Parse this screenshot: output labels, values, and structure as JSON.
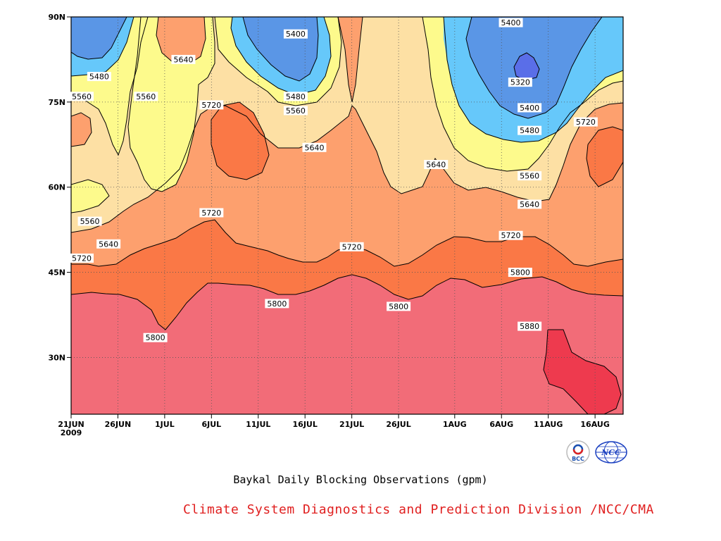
{
  "chart_data": {
    "type": "heatmap",
    "variant": "filled-contour",
    "title": "Baykal Daily Blocking Observations (gpm)",
    "x_ticks": [
      "21JUN",
      "26JUN",
      "1JUL",
      "6JUL",
      "11JUL",
      "16JUL",
      "21JUL",
      "26JUL",
      "1AUG",
      "6AUG",
      "11AUG",
      "16AUG"
    ],
    "x_year_label": "2009",
    "y_ticks": [
      "30N",
      "45N",
      "60N",
      "75N",
      "90N"
    ],
    "x_range": [
      "2009-06-21",
      "2009-08-19"
    ],
    "y_range_deg": [
      20,
      90
    ],
    "grid": "dotted",
    "contour_levels": [
      5320,
      5400,
      5480,
      5560,
      5640,
      5720,
      5800,
      5880
    ],
    "colors": {
      "below_5400": "#5a6ee8",
      "5400_5480": "#5a96e6",
      "5480_5560": "#66c8fa",
      "5560_5640": "#fdfa8c",
      "5640_5720": "#fde0a4",
      "5720_5800": "#fda06e",
      "5800_5880": "#fa7846",
      "5880_5960": "#f26c78",
      "above_5960": "#ee3a4e"
    },
    "contour_labels": [
      {
        "value": "5320",
        "date": "2009-08-08",
        "lat": 78.5
      },
      {
        "value": "5400",
        "date": "2009-07-15",
        "lat": 87
      },
      {
        "value": "5400",
        "date": "2009-08-07",
        "lat": 89
      },
      {
        "value": "5400",
        "date": "2009-08-09",
        "lat": 74
      },
      {
        "value": "5480",
        "date": "2009-06-24",
        "lat": 79.5
      },
      {
        "value": "5480",
        "date": "2009-07-15",
        "lat": 76
      },
      {
        "value": "5480",
        "date": "2009-08-09",
        "lat": 70
      },
      {
        "value": "5560",
        "date": "2009-06-21",
        "lat": 76
      },
      {
        "value": "5560",
        "date": "2009-06-29",
        "lat": 76
      },
      {
        "value": "5560",
        "date": "2009-07-15",
        "lat": 73.5
      },
      {
        "value": "5560",
        "date": "2009-08-09",
        "lat": 62
      },
      {
        "value": "5560",
        "date": "2009-06-23",
        "lat": 54
      },
      {
        "value": "5640",
        "date": "2009-07-03",
        "lat": 82.5
      },
      {
        "value": "5640",
        "date": "2009-07-17",
        "lat": 67
      },
      {
        "value": "5640",
        "date": "2009-07-30",
        "lat": 64
      },
      {
        "value": "5640",
        "date": "2009-08-09",
        "lat": 57
      },
      {
        "value": "5640",
        "date": "2009-06-25",
        "lat": 50
      },
      {
        "value": "5720",
        "date": "2009-07-06",
        "lat": 74.5
      },
      {
        "value": "5720",
        "date": "2009-08-15",
        "lat": 71.5
      },
      {
        "value": "5720",
        "date": "2009-07-06",
        "lat": 55.5
      },
      {
        "value": "5720",
        "date": "2009-07-21",
        "lat": 49.5
      },
      {
        "value": "5720",
        "date": "2009-06-21",
        "lat": 47.5
      },
      {
        "value": "5720",
        "date": "2009-08-07",
        "lat": 51.5
      },
      {
        "value": "5800",
        "date": "2009-08-08",
        "lat": 45
      },
      {
        "value": "5800",
        "date": "2009-07-13",
        "lat": 39.5
      },
      {
        "value": "5800",
        "date": "2009-07-26",
        "lat": 39
      },
      {
        "value": "5800",
        "date": "2009-06-30",
        "lat": 33.5
      },
      {
        "value": "5880",
        "date": "2009-08-09",
        "lat": 35.5
      }
    ]
  },
  "footer": {
    "title": "Baykal Daily Blocking Observations (gpm)",
    "credit": "Climate System Diagnostics and Prediction Division /NCC/CMA"
  },
  "logos": {
    "left": {
      "text": "BCC",
      "icon": "bcc-logo-icon"
    },
    "right": {
      "text": "NCC",
      "icon": "ncc-globe-logo-icon"
    }
  }
}
